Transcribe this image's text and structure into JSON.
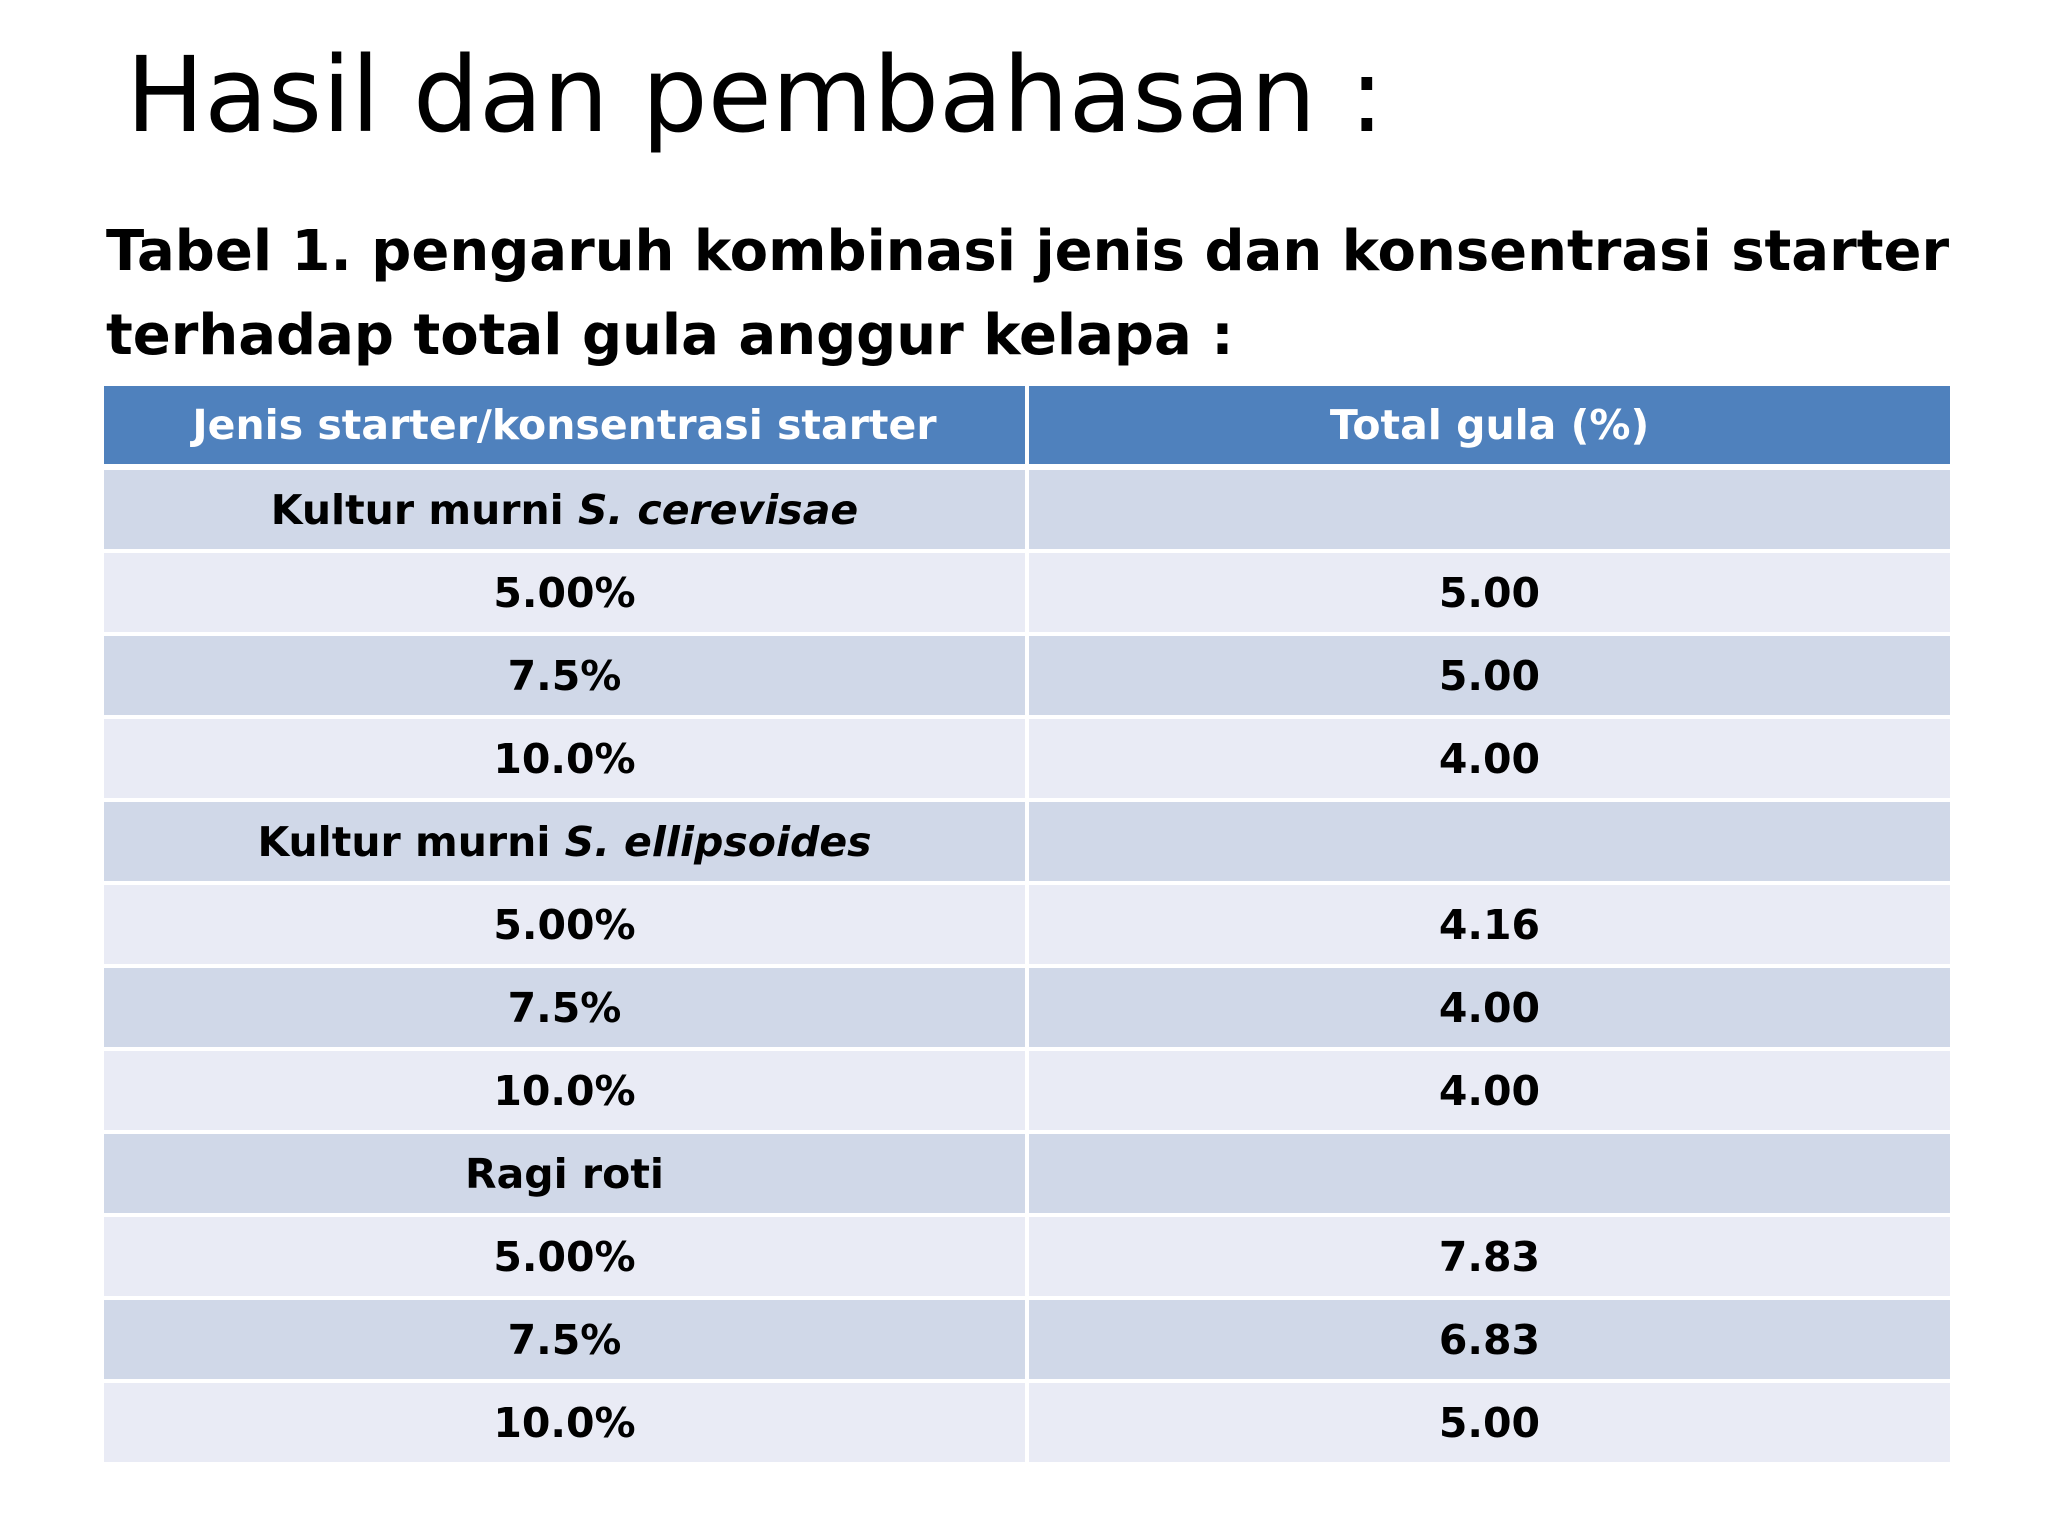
{
  "slide": {
    "title": "Hasil dan pembahasan :",
    "caption": "Tabel 1. pengaruh kombinasi jenis dan konsentrasi starter terhadap total gula anggur kelapa :"
  },
  "colors": {
    "header_bg": "#4f81bd",
    "band_dark": "#d0d8e8",
    "band_light": "#e9ebf5"
  },
  "table": {
    "headers": [
      "Jenis starter/konsentrasi starter",
      "Total gula (%)"
    ],
    "groups": [
      {
        "prefix": "Kultur murni ",
        "species": "S. cerevisae",
        "rows": [
          {
            "konsentrasi": "5.00%",
            "total_gula": "5.00"
          },
          {
            "konsentrasi": "7.5%",
            "total_gula": "5.00"
          },
          {
            "konsentrasi": "10.0%",
            "total_gula": "4.00"
          }
        ]
      },
      {
        "prefix": "Kultur murni ",
        "species": "S. ellipsoides",
        "rows": [
          {
            "konsentrasi": "5.00%",
            "total_gula": "4.16"
          },
          {
            "konsentrasi": "7.5%",
            "total_gula": "4.00"
          },
          {
            "konsentrasi": "10.0%",
            "total_gula": "4.00"
          }
        ]
      },
      {
        "prefix": "Ragi roti",
        "species": "",
        "rows": [
          {
            "konsentrasi": "5.00%",
            "total_gula": "7.83"
          },
          {
            "konsentrasi": "7.5%",
            "total_gula": "6.83"
          },
          {
            "konsentrasi": "10.0%",
            "total_gula": "5.00"
          }
        ]
      }
    ]
  }
}
